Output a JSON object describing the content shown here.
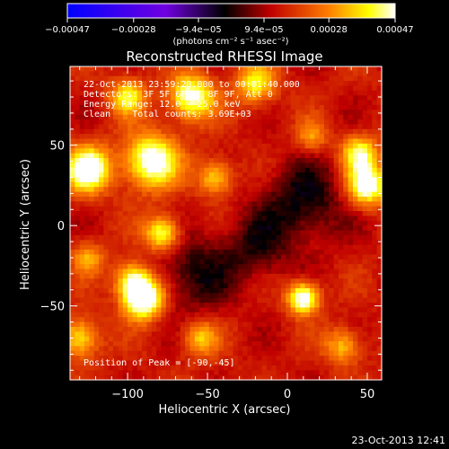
{
  "chart_data": {
    "type": "heatmap",
    "title": "Reconstructed RHESSI Image",
    "xlabel": "Heliocentric X (arcsec)",
    "ylabel": "Heliocentric Y (arcsec)",
    "xlim": [
      -136,
      59
    ],
    "ylim": [
      -96,
      99
    ],
    "x_ticks": [
      -100,
      -50,
      0,
      50
    ],
    "y_ticks": [
      -50,
      0,
      50
    ],
    "x_tick_labels": [
      "−100",
      "−50",
      "0",
      "50"
    ],
    "y_tick_labels": [
      "−50",
      "0",
      "50"
    ],
    "colorbar": {
      "range": [
        -0.00047,
        0.00047
      ],
      "tick_values": [
        -0.00047,
        -0.00028,
        -9.4e-05,
        9.4e-05,
        0.00028,
        0.00047
      ],
      "tick_labels": [
        "−0.00047",
        "−0.00028",
        "−9.4e−05",
        "9.4e−05",
        "0.00028",
        "0.00047"
      ],
      "unit_label": "(photons cm⁻² s⁻¹ asec⁻²)"
    },
    "annotations": [
      "22-Oct-2013 23:59:20.000 to 00:01:40.000",
      "Detectors: 3F 5F 6F 7F 8F 9F, Att 0",
      "Energy Range: 12.0 - 25.0 keV",
      "Clean    Total counts: 3.69E+03"
    ],
    "peak_label": "Position of Peak = [-90,-45]",
    "peak": [
      -90,
      -45
    ],
    "sources": [
      {
        "x": -90,
        "y": -45,
        "amp": 1.0,
        "sigma": 9
      },
      {
        "x": -97,
        "y": -33,
        "amp": 0.55,
        "sigma": 8
      },
      {
        "x": -78,
        "y": -5,
        "amp": 0.7,
        "sigma": 8
      },
      {
        "x": -125,
        "y": 35,
        "amp": 0.85,
        "sigma": 10
      },
      {
        "x": -85,
        "y": 40,
        "amp": 0.8,
        "sigma": 12
      },
      {
        "x": -60,
        "y": 80,
        "amp": 0.75,
        "sigma": 10
      },
      {
        "x": -100,
        "y": 80,
        "amp": 0.55,
        "sigma": 8
      },
      {
        "x": -20,
        "y": 88,
        "amp": 0.55,
        "sigma": 9
      },
      {
        "x": -45,
        "y": 30,
        "amp": 0.5,
        "sigma": 8
      },
      {
        "x": 10,
        "y": -45,
        "amp": 0.85,
        "sigma": 7
      },
      {
        "x": 50,
        "y": 25,
        "amp": 0.8,
        "sigma": 9
      },
      {
        "x": 45,
        "y": 45,
        "amp": 0.6,
        "sigma": 8
      },
      {
        "x": -130,
        "y": -70,
        "amp": 0.55,
        "sigma": 9
      },
      {
        "x": -125,
        "y": -20,
        "amp": 0.4,
        "sigma": 7
      },
      {
        "x": -55,
        "y": -70,
        "amp": 0.45,
        "sigma": 8
      },
      {
        "x": 35,
        "y": -75,
        "amp": 0.45,
        "sigma": 8
      },
      {
        "x": 15,
        "y": 55,
        "amp": 0.35,
        "sigma": 7
      },
      {
        "x": 10,
        "y": 15,
        "amp": -0.35,
        "sigma": 18
      },
      {
        "x": -60,
        "y": -30,
        "amp": -0.3,
        "sigma": 18
      },
      {
        "x": -20,
        "y": -15,
        "amp": -0.25,
        "sigma": 15
      }
    ]
  },
  "footer": {
    "timestamp": "23-Oct-2013 12:41"
  }
}
